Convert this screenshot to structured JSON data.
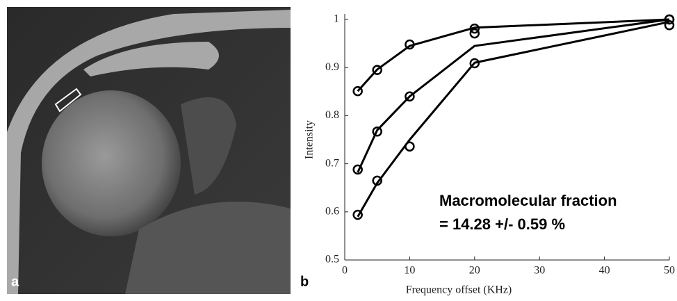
{
  "panel_labels": [
    "a",
    "b"
  ],
  "chart_data": {
    "type": "line",
    "xlabel": "Frequency offset (KHz)",
    "ylabel": "Intensity",
    "annotation": [
      "Macromolecular fraction",
      "= 14.28 +/- 0.59 %"
    ],
    "x": [
      2,
      5,
      10,
      20,
      50
    ],
    "series": [
      {
        "color": "#000000",
        "values": [
          0.851,
          0.895,
          0.948,
          0.981,
          1.0
        ],
        "fit": [
          0.851,
          0.896,
          0.945,
          0.983,
          1.0
        ]
      },
      {
        "color": "#000000",
        "values": [
          0.688,
          0.767,
          0.84,
          0.971,
          1.0
        ],
        "fit": [
          0.682,
          0.77,
          0.84,
          0.945,
          1.0
        ]
      },
      {
        "color": "#000000",
        "values": [
          0.594,
          0.665,
          0.736,
          0.909,
          0.988
        ],
        "fit": [
          0.59,
          0.66,
          0.75,
          0.91,
          0.995
        ]
      }
    ],
    "xlim": [
      0,
      50
    ],
    "ylim": [
      0.5,
      1
    ],
    "xticks": [
      0,
      10,
      20,
      30,
      40,
      50
    ],
    "yticks": [
      0.5,
      0.6,
      0.7,
      0.8,
      0.9,
      1
    ],
    "grid": false
  }
}
